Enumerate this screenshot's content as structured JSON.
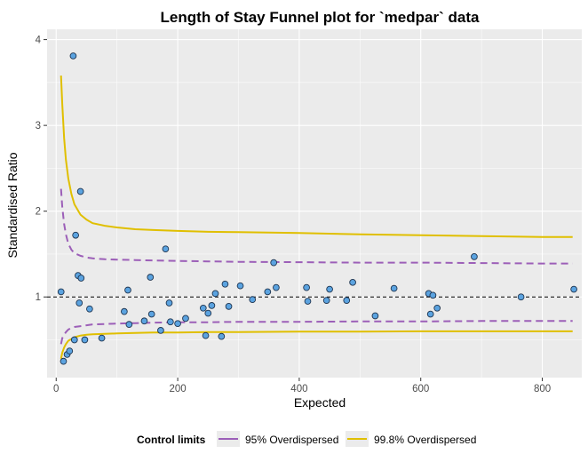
{
  "chart_data": {
    "type": "scatter",
    "title": "Length of Stay Funnel plot for `medpar` data",
    "xlabel": "Expected",
    "ylabel": "Standardised Ratio",
    "xlim": [
      -15,
      865
    ],
    "ylim": [
      0.06,
      4.12
    ],
    "x_ticks": [
      0,
      200,
      400,
      600,
      800
    ],
    "y_ticks": [
      1,
      2,
      3,
      4
    ],
    "grid": true,
    "target_line": 1,
    "legend": {
      "position": "bottom",
      "title": "Control limits",
      "entries": [
        {
          "label": "95% Overdispersed",
          "color": "#9c5fb8",
          "style": "solid"
        },
        {
          "label": "99.8% Overdispersed",
          "color": "#e0bf00",
          "style": "solid"
        }
      ]
    },
    "limits": {
      "x": [
        8,
        10,
        13,
        16,
        20,
        25,
        30,
        40,
        50,
        60,
        80,
        100,
        130,
        160,
        200,
        250,
        300,
        400,
        500,
        600,
        700,
        800,
        850
      ],
      "upper_998": [
        3.58,
        3.25,
        2.85,
        2.6,
        2.38,
        2.2,
        2.08,
        1.96,
        1.9,
        1.86,
        1.83,
        1.81,
        1.79,
        1.78,
        1.77,
        1.76,
        1.755,
        1.745,
        1.73,
        1.72,
        1.71,
        1.7,
        1.7
      ],
      "upper_95": [
        2.26,
        2.05,
        1.85,
        1.73,
        1.62,
        1.55,
        1.51,
        1.48,
        1.46,
        1.45,
        1.44,
        1.435,
        1.43,
        1.425,
        1.42,
        1.415,
        1.41,
        1.405,
        1.4,
        1.4,
        1.395,
        1.39,
        1.39
      ],
      "lower_95": [
        0.45,
        0.52,
        0.56,
        0.59,
        0.62,
        0.64,
        0.65,
        0.66,
        0.67,
        0.68,
        0.685,
        0.69,
        0.695,
        0.7,
        0.705,
        0.705,
        0.71,
        0.71,
        0.715,
        0.715,
        0.72,
        0.72,
        0.72
      ],
      "lower_998": [
        0.28,
        0.35,
        0.41,
        0.45,
        0.49,
        0.51,
        0.53,
        0.55,
        0.56,
        0.565,
        0.57,
        0.575,
        0.58,
        0.585,
        0.585,
        0.59,
        0.59,
        0.595,
        0.595,
        0.6,
        0.6,
        0.6,
        0.6
      ]
    },
    "points": [
      {
        "x": 8,
        "y": 1.06
      },
      {
        "x": 12,
        "y": 0.25
      },
      {
        "x": 18,
        "y": 0.33
      },
      {
        "x": 22,
        "y": 0.37
      },
      {
        "x": 28,
        "y": 3.81
      },
      {
        "x": 30,
        "y": 0.5
      },
      {
        "x": 32,
        "y": 1.72
      },
      {
        "x": 36,
        "y": 1.25
      },
      {
        "x": 38,
        "y": 0.93
      },
      {
        "x": 40,
        "y": 2.23
      },
      {
        "x": 41,
        "y": 1.22
      },
      {
        "x": 47,
        "y": 0.5
      },
      {
        "x": 55,
        "y": 0.86
      },
      {
        "x": 75,
        "y": 0.52
      },
      {
        "x": 112,
        "y": 0.83
      },
      {
        "x": 118,
        "y": 1.08
      },
      {
        "x": 120,
        "y": 0.68
      },
      {
        "x": 145,
        "y": 0.72
      },
      {
        "x": 155,
        "y": 1.23
      },
      {
        "x": 157,
        "y": 0.8
      },
      {
        "x": 172,
        "y": 0.61
      },
      {
        "x": 180,
        "y": 1.56
      },
      {
        "x": 186,
        "y": 0.93
      },
      {
        "x": 188,
        "y": 0.71
      },
      {
        "x": 200,
        "y": 0.69
      },
      {
        "x": 213,
        "y": 0.75
      },
      {
        "x": 242,
        "y": 0.87
      },
      {
        "x": 246,
        "y": 0.55
      },
      {
        "x": 250,
        "y": 0.81
      },
      {
        "x": 256,
        "y": 0.9
      },
      {
        "x": 262,
        "y": 1.04
      },
      {
        "x": 272,
        "y": 0.54
      },
      {
        "x": 278,
        "y": 1.15
      },
      {
        "x": 284,
        "y": 0.89
      },
      {
        "x": 303,
        "y": 1.13
      },
      {
        "x": 323,
        "y": 0.97
      },
      {
        "x": 348,
        "y": 1.06
      },
      {
        "x": 358,
        "y": 1.4
      },
      {
        "x": 362,
        "y": 1.11
      },
      {
        "x": 412,
        "y": 1.11
      },
      {
        "x": 414,
        "y": 0.95
      },
      {
        "x": 445,
        "y": 0.96
      },
      {
        "x": 450,
        "y": 1.09
      },
      {
        "x": 478,
        "y": 0.96
      },
      {
        "x": 488,
        "y": 1.17
      },
      {
        "x": 525,
        "y": 0.78
      },
      {
        "x": 556,
        "y": 1.1
      },
      {
        "x": 613,
        "y": 1.04
      },
      {
        "x": 616,
        "y": 0.8
      },
      {
        "x": 620,
        "y": 1.02
      },
      {
        "x": 627,
        "y": 0.87
      },
      {
        "x": 688,
        "y": 1.47
      },
      {
        "x": 765,
        "y": 1.0
      },
      {
        "x": 852,
        "y": 1.09
      }
    ]
  },
  "colors": {
    "panel_bg": "#ebebeb",
    "grid_major": "#ffffff",
    "point_fill": "#5ba3e0",
    "point_stroke": "#1f3550",
    "color_95": "#9c5fb8",
    "color_998": "#e0bf00",
    "target_line": "#000000"
  }
}
